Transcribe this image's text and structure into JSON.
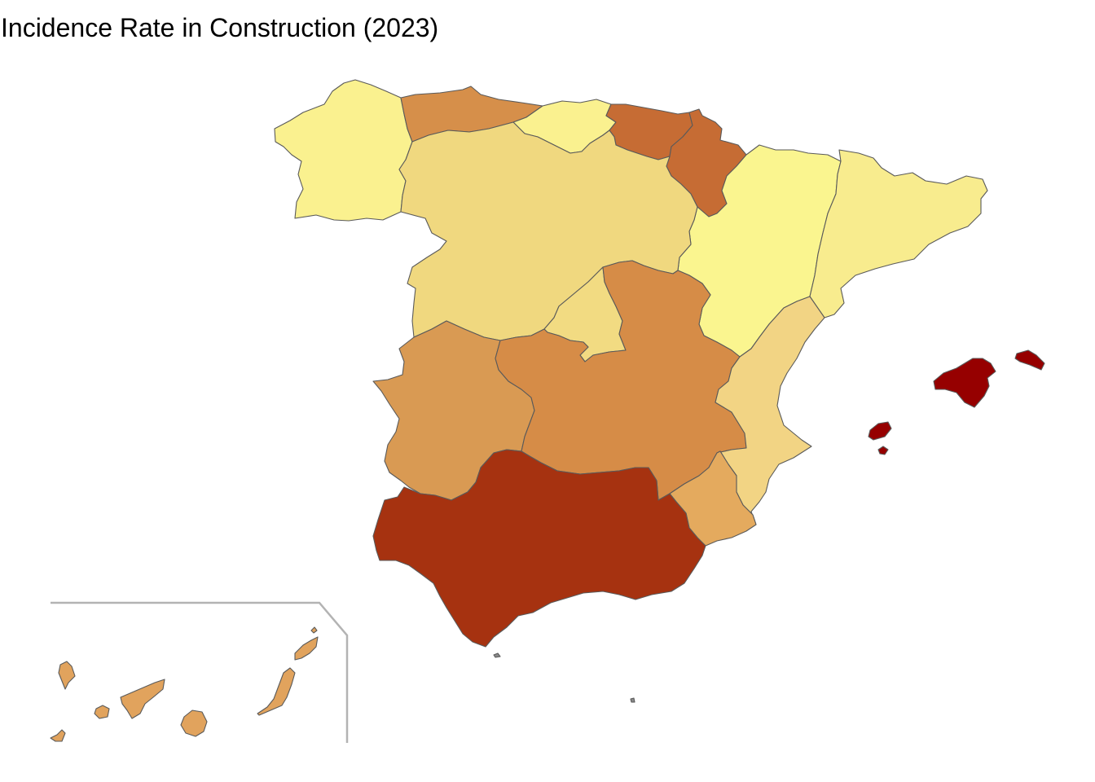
{
  "title": "Incidence Rate in Construction (2023)",
  "map": {
    "subject": "Spain by autonomous community",
    "regions": [
      {
        "id": "galicia",
        "color": "#faf18f"
      },
      {
        "id": "asturias",
        "color": "#d68f4a"
      },
      {
        "id": "cantabria",
        "color": "#faf18f"
      },
      {
        "id": "pais-vasco",
        "color": "#c66c34"
      },
      {
        "id": "navarra",
        "color": "#c66c34"
      },
      {
        "id": "la-rioja",
        "color": "#a2290e"
      },
      {
        "id": "castilla-y-leon",
        "color": "#f0d87f"
      },
      {
        "id": "aragon",
        "color": "#faf58f"
      },
      {
        "id": "cataluna",
        "color": "#f8ec8e"
      },
      {
        "id": "madrid",
        "color": "#f2db82"
      },
      {
        "id": "extremadura",
        "color": "#d99a53"
      },
      {
        "id": "castilla-la-mancha",
        "color": "#d68c47"
      },
      {
        "id": "comunitat-valenciana",
        "color": "#f2d484"
      },
      {
        "id": "region-de-murcia",
        "color": "#e4aa5e"
      },
      {
        "id": "andalucia",
        "color": "#a63210"
      },
      {
        "id": "illes-balears",
        "color": "#960000"
      },
      {
        "id": "canarias",
        "color": "#e1a35d"
      },
      {
        "id": "ceuta",
        "color": "#8a8a8a"
      },
      {
        "id": "melilla",
        "color": "#8a8a8a"
      }
    ]
  }
}
